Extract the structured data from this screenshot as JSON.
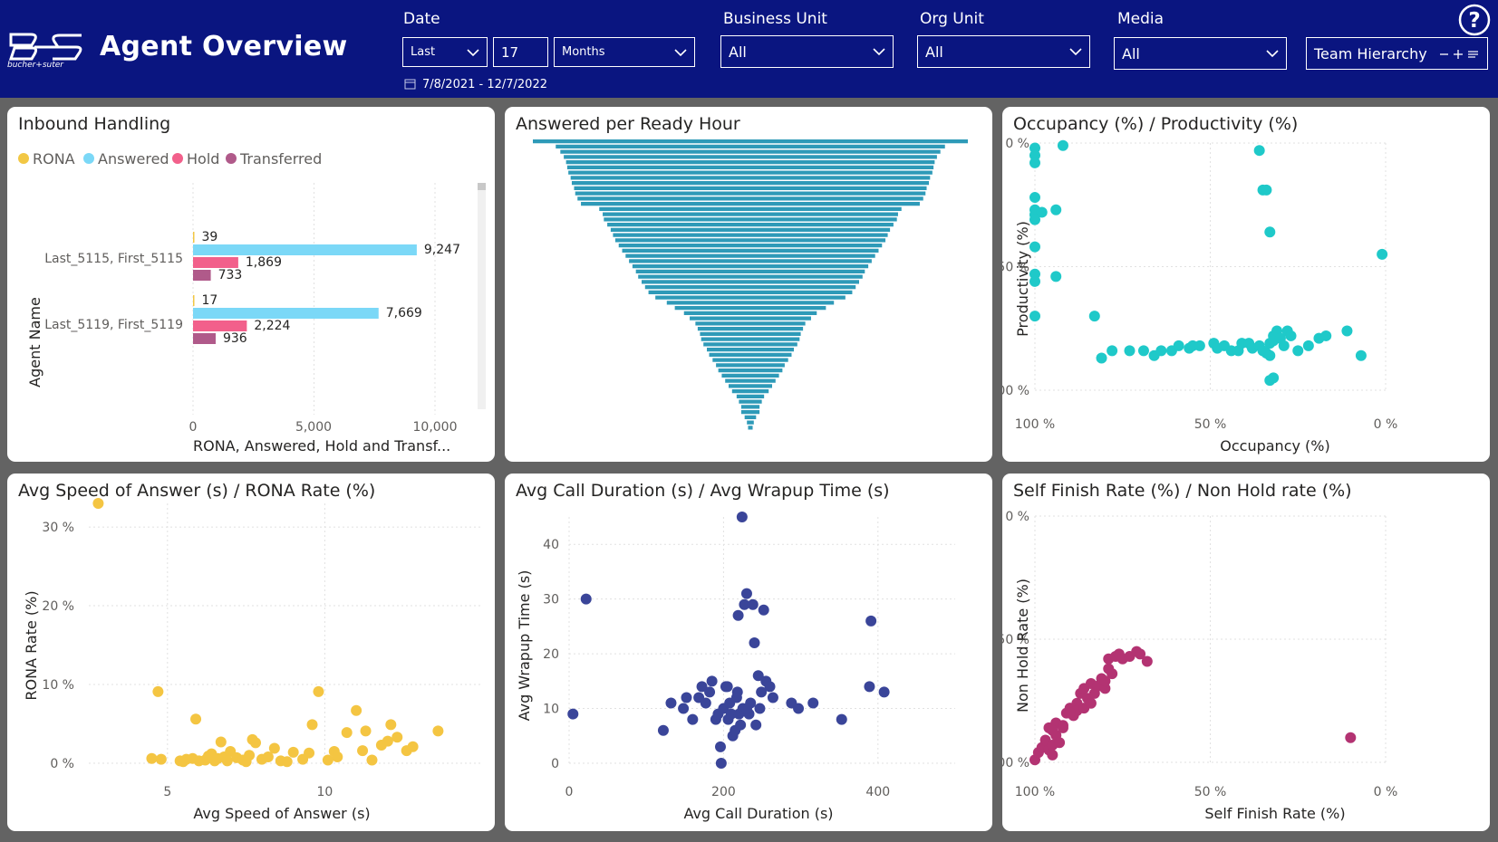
{
  "header": {
    "brand_text": "bucher+suter",
    "title": "Agent Overview",
    "date": {
      "label": "Date",
      "relative": "Last",
      "count": "17",
      "unit": "Months",
      "range": "7/8/2021 - 12/7/2022"
    },
    "business_unit": {
      "label": "Business Unit",
      "value": "All"
    },
    "org_unit": {
      "label": "Org Unit",
      "value": "All"
    },
    "media": {
      "label": "Media",
      "value": "All"
    },
    "team_hierarchy": {
      "label": "Team Hierarchy"
    }
  },
  "cards": {
    "inbound": "Inbound Handling",
    "answered_ready": "Answered per Ready Hour",
    "occupancy": "Occupancy (%) / Productivity (%)",
    "speed": "Avg Speed of Answer (s) / RONA Rate (%)",
    "duration": "Avg Call Duration (s) / Avg Wrapup Time (s)",
    "selffinish": "Self Finish Rate (%) / Non Hold rate (%)"
  },
  "colors": {
    "rona": "#f2c744",
    "answered": "#7bd8f7",
    "hold": "#f2608b",
    "transferred": "#b05a8a",
    "funnel": "#2e9ab8",
    "occupancy": "#1fc9c9",
    "speed": "#f4c542",
    "duration": "#3a4599",
    "selffinish": "#b33372"
  },
  "chart_data": [
    {
      "type": "bar",
      "orientation": "horizontal",
      "title": "Inbound Handling",
      "ylabel": "Agent Name",
      "xlabel": "RONA, Answered, Hold and Transf...",
      "xlim": [
        0,
        11000
      ],
      "xticks": [
        "0",
        "5,000",
        "10,000"
      ],
      "categories": [
        "Last_5115, First_5115",
        "Last_5119, First_5119"
      ],
      "series": [
        {
          "name": "RONA",
          "values": [
            39,
            17
          ],
          "labels": [
            "39",
            "17"
          ]
        },
        {
          "name": "Answered",
          "values": [
            9247,
            7669
          ],
          "labels": [
            "9,247",
            "7,669"
          ]
        },
        {
          "name": "Hold",
          "values": [
            1869,
            2224
          ],
          "labels": [
            "1,869",
            "2,224"
          ]
        },
        {
          "name": "Transferred",
          "values": [
            733,
            936
          ],
          "labels": [
            "733",
            "936"
          ]
        }
      ]
    },
    {
      "type": "bar",
      "title": "Answered per Ready Hour",
      "values": [
        19.0,
        17.0,
        16.6,
        16.3,
        16.1,
        16.0,
        15.9,
        15.7,
        15.6,
        15.4,
        15.3,
        15.1,
        14.8,
        13.2,
        12.9,
        12.8,
        12.5,
        12.2,
        12.0,
        11.8,
        11.5,
        11.2,
        10.9,
        10.6,
        10.3,
        10.0,
        9.8,
        9.5,
        9.2,
        8.9,
        8.3,
        7.3,
        6.6,
        5.8,
        5.3,
        4.8,
        4.6,
        4.4,
        4.3,
        4.1,
        3.8,
        3.6,
        3.3,
        3.0,
        2.8,
        2.5,
        2.2,
        1.9,
        1.6,
        1.2,
        1.0,
        0.8,
        0.8,
        0.5,
        0.3,
        0.2
      ]
    },
    {
      "type": "scatter",
      "title": "Occupancy (%) / Productivity (%)",
      "xlabel": "Occupancy (%)",
      "ylabel": "Productivity (%)",
      "xlim": [
        100,
        0
      ],
      "ylim": [
        0,
        100
      ],
      "xticks": [
        "100 %",
        "50 %",
        "0 %"
      ],
      "yticks": [
        "0 %",
        "50 %",
        "100 %"
      ],
      "points": [
        [
          100,
          2
        ],
        [
          100,
          5
        ],
        [
          100,
          8
        ],
        [
          100,
          22
        ],
        [
          100,
          27
        ],
        [
          100,
          29
        ],
        [
          100,
          31
        ],
        [
          100,
          42
        ],
        [
          100,
          53
        ],
        [
          100,
          56
        ],
        [
          100,
          70
        ],
        [
          98,
          28
        ],
        [
          94,
          27
        ],
        [
          94,
          54
        ],
        [
          92,
          1
        ],
        [
          83,
          70
        ],
        [
          81,
          87
        ],
        [
          78,
          84
        ],
        [
          73,
          84
        ],
        [
          69,
          84
        ],
        [
          66,
          86
        ],
        [
          64,
          84
        ],
        [
          61,
          84
        ],
        [
          59,
          82
        ],
        [
          56,
          83
        ],
        [
          55,
          82
        ],
        [
          53,
          82
        ],
        [
          49,
          81
        ],
        [
          48,
          83
        ],
        [
          46,
          82
        ],
        [
          44,
          84
        ],
        [
          42,
          84
        ],
        [
          41,
          81
        ],
        [
          39,
          81
        ],
        [
          38,
          83
        ],
        [
          36,
          82
        ],
        [
          35,
          84
        ],
        [
          34,
          85
        ],
        [
          33,
          81
        ],
        [
          36,
          3
        ],
        [
          35,
          19
        ],
        [
          34,
          19
        ],
        [
          33,
          36
        ],
        [
          33,
          86
        ],
        [
          32,
          78
        ],
        [
          32,
          80
        ],
        [
          31,
          76
        ],
        [
          30,
          79
        ],
        [
          29,
          82
        ],
        [
          28,
          76
        ],
        [
          27,
          78
        ],
        [
          25,
          84
        ],
        [
          22,
          82
        ],
        [
          19,
          79
        ],
        [
          17,
          78
        ],
        [
          11,
          76
        ],
        [
          7,
          86
        ],
        [
          1,
          45
        ],
        [
          33,
          96
        ],
        [
          32,
          95
        ]
      ]
    },
    {
      "type": "scatter",
      "title": "Avg Speed of Answer (s) / RONA Rate (%)",
      "xlabel": "Avg Speed of Answer (s)",
      "ylabel": "RONA Rate (%)",
      "xlim": [
        2.5,
        15
      ],
      "ylim": [
        0,
        33
      ],
      "xticks": [
        "5",
        "10"
      ],
      "yticks": [
        "0 %",
        "10 %",
        "20 %",
        "30 %"
      ],
      "points": [
        [
          2.8,
          33
        ],
        [
          4.5,
          0.6
        ],
        [
          4.8,
          0.5
        ],
        [
          4.7,
          9.1
        ],
        [
          5.4,
          0.3
        ],
        [
          5.5,
          0.2
        ],
        [
          5.6,
          0.5
        ],
        [
          5.8,
          0.6
        ],
        [
          5.9,
          5.6
        ],
        [
          6.0,
          0.3
        ],
        [
          6.2,
          0.4
        ],
        [
          6.3,
          0.9
        ],
        [
          6.4,
          1.2
        ],
        [
          6.5,
          0.3
        ],
        [
          6.6,
          0.6
        ],
        [
          6.7,
          2.7
        ],
        [
          6.8,
          0.8
        ],
        [
          6.9,
          0.3
        ],
        [
          7.0,
          1.5
        ],
        [
          7.2,
          0.7
        ],
        [
          7.4,
          0.4
        ],
        [
          7.5,
          0.2
        ],
        [
          7.6,
          1.0
        ],
        [
          7.7,
          3.0
        ],
        [
          7.8,
          2.6
        ],
        [
          8.0,
          0.5
        ],
        [
          8.2,
          0.8
        ],
        [
          8.4,
          1.9
        ],
        [
          8.6,
          0.3
        ],
        [
          8.8,
          0.2
        ],
        [
          9.0,
          1.4
        ],
        [
          9.3,
          0.5
        ],
        [
          9.5,
          1.3
        ],
        [
          9.6,
          4.9
        ],
        [
          9.8,
          9.1
        ],
        [
          10.1,
          0.4
        ],
        [
          10.3,
          1.5
        ],
        [
          10.4,
          0.8
        ],
        [
          10.7,
          3.9
        ],
        [
          11.0,
          6.7
        ],
        [
          11.2,
          1.6
        ],
        [
          11.3,
          4.1
        ],
        [
          11.5,
          0.4
        ],
        [
          11.8,
          2.3
        ],
        [
          12.0,
          2.8
        ],
        [
          12.1,
          4.9
        ],
        [
          12.3,
          3.3
        ],
        [
          12.6,
          1.6
        ],
        [
          12.8,
          2.1
        ],
        [
          13.6,
          4.1
        ]
      ]
    },
    {
      "type": "scatter",
      "title": "Avg Call Duration (s) / Avg Wrapup Time (s)",
      "xlabel": "Avg Call Duration (s)",
      "ylabel": "Avg Wrapup Time (s)",
      "xlim": [
        0,
        500
      ],
      "ylim": [
        0,
        45
      ],
      "xticks": [
        "0",
        "200",
        "400"
      ],
      "yticks": [
        "0",
        "10",
        "20",
        "30",
        "40"
      ],
      "points": [
        [
          5,
          9
        ],
        [
          22,
          30
        ],
        [
          122,
          6
        ],
        [
          132,
          11
        ],
        [
          148,
          10
        ],
        [
          152,
          12
        ],
        [
          160,
          8
        ],
        [
          168,
          12
        ],
        [
          172,
          14
        ],
        [
          177,
          11
        ],
        [
          182,
          13
        ],
        [
          185,
          15
        ],
        [
          190,
          8
        ],
        [
          193,
          9
        ],
        [
          196,
          3
        ],
        [
          200,
          10
        ],
        [
          203,
          14
        ],
        [
          206,
          8
        ],
        [
          208,
          11
        ],
        [
          210,
          9
        ],
        [
          212,
          5
        ],
        [
          215,
          6
        ],
        [
          217,
          12
        ],
        [
          219,
          27
        ],
        [
          220,
          9
        ],
        [
          222,
          7
        ],
        [
          224,
          45
        ],
        [
          225,
          10
        ],
        [
          227,
          29
        ],
        [
          230,
          31
        ],
        [
          233,
          9
        ],
        [
          235,
          11
        ],
        [
          238,
          29
        ],
        [
          240,
          22
        ],
        [
          242,
          7
        ],
        [
          245,
          16
        ],
        [
          247,
          10
        ],
        [
          249,
          13
        ],
        [
          252,
          28
        ],
        [
          255,
          15
        ],
        [
          260,
          14
        ],
        [
          264,
          12
        ],
        [
          288,
          11
        ],
        [
          297,
          10
        ],
        [
          316,
          11
        ],
        [
          353,
          8
        ],
        [
          389,
          14
        ],
        [
          391,
          26
        ],
        [
          408,
          13
        ],
        [
          197,
          0
        ],
        [
          205,
          14
        ],
        [
          218,
          13
        ],
        [
          230,
          10
        ]
      ]
    },
    {
      "type": "scatter",
      "title": "Self Finish Rate (%) / Non Hold rate (%)",
      "xlabel": "Self Finish Rate (%)",
      "ylabel": "Non Hold Rate (%)",
      "xlim": [
        100,
        0
      ],
      "ylim": [
        0,
        100
      ],
      "xticks": [
        "100 %",
        "50 %",
        "0 %"
      ],
      "yticks": [
        "0 %",
        "50 %",
        "100 %"
      ],
      "points": [
        [
          100,
          99
        ],
        [
          99,
          96
        ],
        [
          98,
          94
        ],
        [
          97,
          91
        ],
        [
          96,
          86
        ],
        [
          96,
          95
        ],
        [
          95,
          93
        ],
        [
          95,
          97
        ],
        [
          94,
          84
        ],
        [
          94,
          89
        ],
        [
          93,
          92
        ],
        [
          92,
          85
        ],
        [
          91,
          80
        ],
        [
          90,
          78
        ],
        [
          89,
          81
        ],
        [
          88,
          76
        ],
        [
          88,
          79
        ],
        [
          87,
          72
        ],
        [
          86,
          78
        ],
        [
          86,
          70
        ],
        [
          85,
          74
        ],
        [
          84,
          76
        ],
        [
          84,
          68
        ],
        [
          83,
          72
        ],
        [
          82,
          69
        ],
        [
          81,
          66
        ],
        [
          80,
          70
        ],
        [
          80,
          67
        ],
        [
          79,
          62
        ],
        [
          79,
          58
        ],
        [
          78,
          64
        ],
        [
          77,
          57
        ],
        [
          76,
          56
        ],
        [
          75,
          58
        ],
        [
          73,
          57
        ],
        [
          71,
          55
        ],
        [
          70,
          56
        ],
        [
          68,
          59
        ],
        [
          95,
          87
        ],
        [
          92,
          86
        ],
        [
          90,
          80
        ],
        [
          10,
          90
        ]
      ]
    }
  ]
}
